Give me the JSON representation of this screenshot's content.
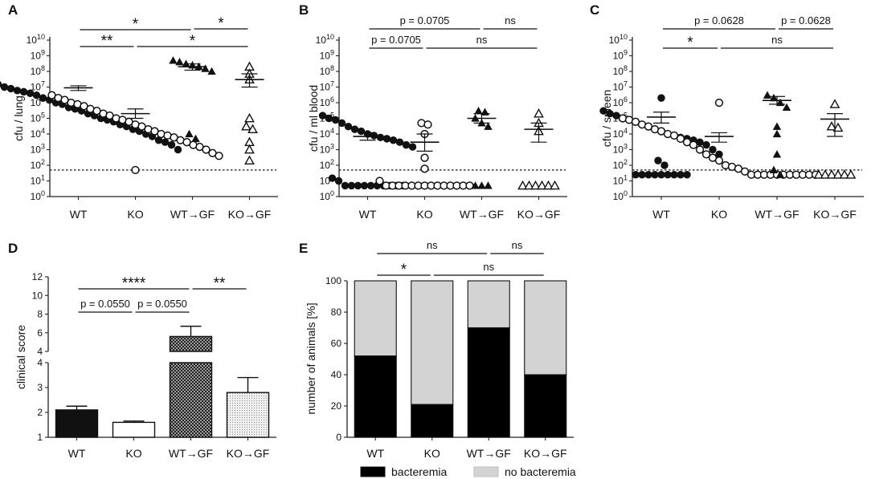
{
  "chart_data": [
    {
      "panel": "A",
      "type": "scatter",
      "scale": "log",
      "ylabel": "cfu / lung",
      "categories": [
        "WT",
        "KO",
        "WT→GF",
        "KO→GF"
      ],
      "ylim": [
        1,
        10000000000
      ],
      "detection_limit": 50,
      "series": [
        {
          "name": "WT",
          "marker": "filled-circle",
          "mean": 9000000,
          "sem_low": 6000000,
          "sem_high": 12000000,
          "values": [
            30000000,
            20000000,
            20000000,
            15000000,
            10000000,
            8000000,
            6000000,
            5000000,
            4000000,
            3000000,
            2000000,
            1500000,
            1000000,
            800000,
            500000,
            400000,
            300000,
            200000,
            150000,
            100000,
            80000,
            60000,
            40000,
            30000,
            20000,
            15000,
            10000,
            7000,
            4000,
            3000,
            2000,
            1000
          ]
        },
        {
          "name": "KO",
          "marker": "open-circle",
          "mean": 200000,
          "sem_low": 100000,
          "sem_high": 400000,
          "values": [
            3000000,
            2000000,
            1500000,
            1000000,
            800000,
            600000,
            400000,
            300000,
            200000,
            150000,
            100000,
            80000,
            60000,
            40000,
            30000,
            20000,
            15000,
            10000,
            8000,
            6000,
            4000,
            3000,
            2000,
            1500,
            1000,
            600,
            400,
            50
          ]
        },
        {
          "name": "WT→GF",
          "marker": "filled-triangle",
          "mean": 200000000,
          "sem_low": 120000000,
          "sem_high": 300000000,
          "values": [
            500000000,
            400000000,
            300000000,
            250000000,
            200000000,
            150000000,
            100000000,
            10000,
            5000
          ]
        },
        {
          "name": "KO→GF",
          "marker": "open-triangle",
          "mean": 30000000,
          "sem_low": 10000000,
          "sem_high": 70000000,
          "values": [
            200000000,
            70000000,
            30000000,
            100000,
            30000,
            20000,
            3000,
            1000,
            200
          ]
        }
      ],
      "brackets": [
        {
          "from": 0,
          "to": 2,
          "label": "*"
        },
        {
          "from": 2,
          "to": 3,
          "label": "*"
        },
        {
          "from": 0,
          "to": 1,
          "label": "**"
        },
        {
          "from": 1,
          "to": 3,
          "label": "*"
        }
      ]
    },
    {
      "panel": "B",
      "type": "scatter",
      "scale": "log",
      "ylabel": "cfu / ml blood",
      "categories": [
        "WT",
        "KO",
        "WT→GF",
        "KO→GF"
      ],
      "ylim": [
        1,
        10000000000
      ],
      "detection_limit": 50,
      "series": [
        {
          "name": "WT",
          "marker": "filled-circle",
          "mean": 7000,
          "sem_low": 4000,
          "sem_high": 12000,
          "values": [
            150000,
            100000,
            80000,
            50000,
            30000,
            20000,
            15000,
            10000,
            8000,
            6000,
            5000,
            4000,
            3000,
            2000,
            1500,
            15,
            10,
            5,
            5,
            5,
            5,
            5,
            5,
            5,
            5,
            5,
            5
          ]
        },
        {
          "name": "KO",
          "marker": "open-circle",
          "mean": 3000,
          "sem_low": 800,
          "sem_high": 10000,
          "values": [
            50000,
            40000,
            10000,
            300,
            60,
            10,
            5,
            5,
            5,
            5,
            5,
            5,
            5,
            5,
            5,
            5,
            5,
            5,
            5,
            5
          ]
        },
        {
          "name": "WT→GF",
          "marker": "filled-triangle",
          "mean": 100000,
          "sem_low": 50000,
          "sem_high": 200000,
          "values": [
            300000,
            250000,
            100000,
            50000,
            30000,
            5,
            5,
            5
          ]
        },
        {
          "name": "KO→GF",
          "marker": "open-triangle",
          "mean": 20000,
          "sem_low": 3000,
          "sem_high": 50000,
          "values": [
            200000,
            50000,
            15000,
            5,
            5,
            5,
            5,
            5,
            5
          ]
        }
      ],
      "brackets": [
        {
          "from": 0,
          "to": 2,
          "label": "p = 0.0705"
        },
        {
          "from": 2,
          "to": 3,
          "label": "ns"
        },
        {
          "from": 0,
          "to": 1,
          "label": "p  = 0.0705"
        },
        {
          "from": 1,
          "to": 3,
          "label": "ns"
        }
      ]
    },
    {
      "panel": "C",
      "type": "scatter",
      "scale": "log",
      "ylabel": "cfu / spleen",
      "categories": [
        "WT",
        "KO",
        "WT→GF",
        "KO→GF"
      ],
      "ylim": [
        1,
        10000000000
      ],
      "detection_limit": 50,
      "series": [
        {
          "name": "WT",
          "marker": "filled-circle",
          "mean": 120000,
          "sem_low": 50000,
          "sem_high": 250000,
          "values": [
            2000000,
            300000,
            200000,
            150000,
            100000,
            80000,
            60000,
            40000,
            30000,
            20000,
            15000,
            10000,
            8000,
            6000,
            5000,
            4000,
            3000,
            2000,
            1000,
            500,
            200,
            100,
            25,
            25,
            25,
            25,
            25,
            25,
            25,
            25,
            25
          ]
        },
        {
          "name": "KO",
          "marker": "open-circle",
          "mean": 7000,
          "sem_low": 3000,
          "sem_high": 12000,
          "values": [
            1000000,
            100000,
            80000,
            60000,
            40000,
            30000,
            20000,
            15000,
            10000,
            8000,
            5000,
            3000,
            2000,
            1000,
            500,
            300,
            200,
            100,
            80,
            60,
            40,
            25,
            25,
            25,
            25,
            25,
            25,
            25,
            25,
            25,
            25,
            25
          ]
        },
        {
          "name": "WT→GF",
          "marker": "filled-triangle",
          "mean": 1400000,
          "sem_low": 800000,
          "sem_high": 2500000,
          "values": [
            3000000,
            2000000,
            1000000,
            500000,
            30000,
            10000,
            500,
            50,
            25
          ]
        },
        {
          "name": "KO→GF",
          "marker": "open-triangle",
          "mean": 90000,
          "sem_low": 7000,
          "sem_high": 200000,
          "values": [
            800000,
            30000,
            25000,
            25,
            25,
            25,
            25,
            25,
            25
          ]
        }
      ],
      "brackets": [
        {
          "from": 0,
          "to": 2,
          "label": "p = 0.0628"
        },
        {
          "from": 2,
          "to": 3,
          "label": "p = 0.0628"
        },
        {
          "from": 0,
          "to": 1,
          "label": "*"
        },
        {
          "from": 1,
          "to": 3,
          "label": "ns"
        }
      ]
    },
    {
      "panel": "D",
      "type": "bar",
      "broken_axis": true,
      "ylabel": "clinical score",
      "categories": [
        "WT",
        "KO",
        "WT→GF",
        "KO→GF"
      ],
      "values": [
        2.1,
        1.6,
        5.6,
        2.8
      ],
      "errors": [
        0.15,
        0.05,
        1.1,
        0.6
      ],
      "fills": [
        "solid-black",
        "white",
        "dense-crosshatch",
        "light-dots"
      ],
      "ylim_lower": [
        1,
        4
      ],
      "yticks_lower": [
        1,
        2,
        3,
        4
      ],
      "ylim_upper": [
        4,
        12
      ],
      "yticks_upper": [
        4,
        6,
        8,
        10,
        12
      ],
      "brackets": [
        {
          "from": 0,
          "to": 2,
          "label": "****"
        },
        {
          "from": 2,
          "to": 3,
          "label": "**"
        },
        {
          "from": 0,
          "to": 1,
          "label": "p = 0.0550"
        },
        {
          "from": 1,
          "to": 2,
          "label": "p = 0.0550"
        }
      ]
    },
    {
      "panel": "E",
      "type": "bar",
      "stacked": true,
      "ylabel": "number of animals [%]",
      "categories": [
        "WT",
        "KO",
        "WT→GF",
        "KO→GF"
      ],
      "ylim": [
        0,
        100
      ],
      "yticks": [
        0,
        20,
        40,
        60,
        80,
        100
      ],
      "series": [
        {
          "name": "bacteremia",
          "color": "#000000",
          "values": [
            52,
            21,
            70,
            40
          ]
        },
        {
          "name": "no bacteremia",
          "color": "#d3d3d3",
          "values": [
            48,
            79,
            30,
            60
          ]
        }
      ],
      "legend": [
        "bacteremia",
        "no bacteremia"
      ],
      "brackets": [
        {
          "from": 0,
          "to": 2,
          "label": "ns"
        },
        {
          "from": 2,
          "to": 3,
          "label": "ns"
        },
        {
          "from": 0,
          "to": 1,
          "label": "*"
        },
        {
          "from": 1,
          "to": 3,
          "label": "ns"
        }
      ]
    }
  ]
}
